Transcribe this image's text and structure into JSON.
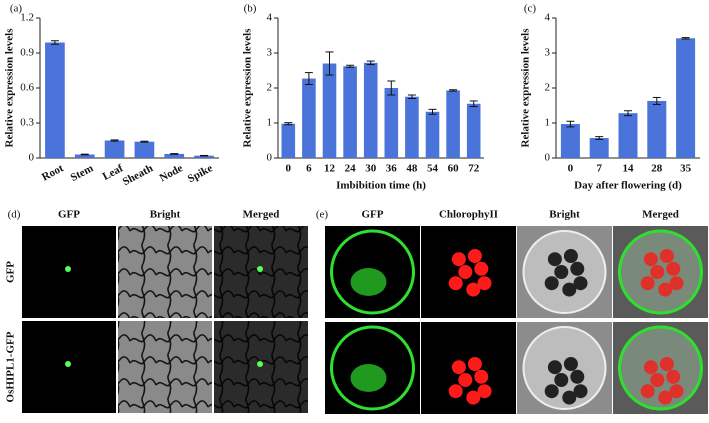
{
  "chart_data": [
    {
      "type": "bar",
      "label": "(a)",
      "ylabel": "Relative expression levels",
      "categories": [
        "Root",
        "Stem",
        "Leaf",
        "Sheath",
        "Node",
        "Spike"
      ],
      "values": [
        0.99,
        0.03,
        0.15,
        0.14,
        0.035,
        0.02
      ],
      "errors": [
        0.015,
        0.003,
        0.005,
        0.004,
        0.003,
        0.002
      ],
      "color": "#4a74d9",
      "ylim": [
        0,
        1.2
      ],
      "yticks": [
        0,
        0.3,
        0.6,
        0.9,
        1.2
      ]
    },
    {
      "type": "bar",
      "label": "(b)",
      "ylabel": "Relative expression levels",
      "xlabel": "Imbibition time (h)",
      "categories": [
        "0",
        "6",
        "12",
        "24",
        "30",
        "36",
        "48",
        "54",
        "60",
        "72"
      ],
      "values": [
        0.98,
        2.27,
        2.7,
        2.62,
        2.72,
        2.0,
        1.75,
        1.32,
        1.93,
        1.55
      ],
      "errors": [
        0.03,
        0.17,
        0.33,
        0.03,
        0.05,
        0.2,
        0.05,
        0.07,
        0.02,
        0.08
      ],
      "color": "#4a74d9",
      "ylim": [
        0,
        4
      ],
      "yticks": [
        0,
        1,
        2,
        3,
        4
      ]
    },
    {
      "type": "bar",
      "label": "(c)",
      "ylabel": "Relative expression levels",
      "xlabel": "Day after flowering (d)",
      "categories": [
        "0",
        "7",
        "14",
        "28",
        "35"
      ],
      "values": [
        0.97,
        0.57,
        1.28,
        1.63,
        3.42
      ],
      "errors": [
        0.08,
        0.04,
        0.07,
        0.1,
        0.02
      ],
      "color": "#4a74d9",
      "ylim": [
        0,
        4
      ],
      "yticks": [
        0,
        1,
        2,
        3,
        4
      ]
    }
  ],
  "image_panels": [
    {
      "label": "(d)",
      "columns": [
        "GFP",
        "Bright",
        "Merged"
      ],
      "rows": [
        "GFP",
        "OsHIPL1-GFP"
      ]
    },
    {
      "label": "(e)",
      "columns": [
        "GFP",
        "ChlorophyII",
        "Bright",
        "Merged"
      ]
    }
  ]
}
